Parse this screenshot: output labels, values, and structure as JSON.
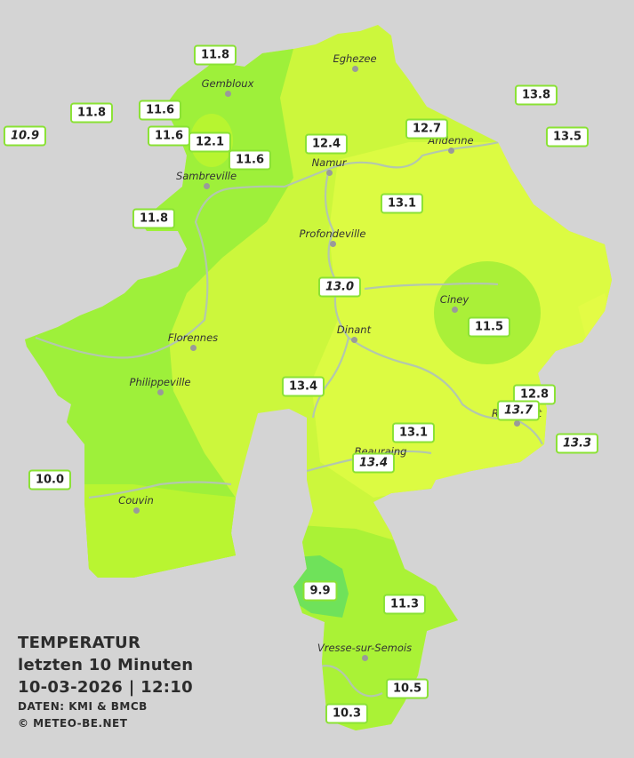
{
  "legend": {
    "title": "TEMPERATUR",
    "period": "letzten 10 Minuten",
    "datetime": "10-03-2026  |  12:10",
    "source": "DATEN: KMI & BMCB",
    "copyright": "© METEO-BE.NET"
  },
  "colors": {
    "background": "#d4d4d4",
    "zone_cool": "#9ef03a",
    "zone_mid": "#b9f531",
    "zone_warm": "#ccf73c",
    "zone_warmest": "#dcfb42",
    "zone_cold_spot": "#6fe25a",
    "river": "#b3c7ad",
    "station_border": "#8ae234"
  },
  "cities": [
    {
      "name": "Eghezee"
    },
    {
      "name": "Gembloux"
    },
    {
      "name": "Andenne"
    },
    {
      "name": "Namur"
    },
    {
      "name": "Sambreville"
    },
    {
      "name": "Profondeville"
    },
    {
      "name": "Ciney"
    },
    {
      "name": "Dinant"
    },
    {
      "name": "Florennes"
    },
    {
      "name": "Philippeville"
    },
    {
      "name": "Rochefort"
    },
    {
      "name": "Beauraing"
    },
    {
      "name": "Couvin"
    },
    {
      "name": "Vresse-sur-Semois"
    }
  ],
  "stations": [
    {
      "value": "11.8",
      "italic": false
    },
    {
      "value": "11.8",
      "italic": false
    },
    {
      "value": "11.6",
      "italic": false
    },
    {
      "value": "10.9",
      "italic": true
    },
    {
      "value": "11.6",
      "italic": false
    },
    {
      "value": "12.1",
      "italic": false
    },
    {
      "value": "11.6",
      "italic": false
    },
    {
      "value": "12.4",
      "italic": false
    },
    {
      "value": "12.7",
      "italic": false
    },
    {
      "value": "13.8",
      "italic": false
    },
    {
      "value": "13.5",
      "italic": false
    },
    {
      "value": "11.8",
      "italic": false
    },
    {
      "value": "13.1",
      "italic": false
    },
    {
      "value": "13.0",
      "italic": true
    },
    {
      "value": "11.5",
      "italic": false
    },
    {
      "value": "13.4",
      "italic": false
    },
    {
      "value": "12.8",
      "italic": false
    },
    {
      "value": "13.7",
      "italic": true
    },
    {
      "value": "13.1",
      "italic": false
    },
    {
      "value": "13.3",
      "italic": true
    },
    {
      "value": "13.4",
      "italic": true
    },
    {
      "value": "10.0",
      "italic": false
    },
    {
      "value": "9.9",
      "italic": false
    },
    {
      "value": "11.3",
      "italic": false
    },
    {
      "value": "10.5",
      "italic": false
    },
    {
      "value": "10.3",
      "italic": false
    }
  ]
}
